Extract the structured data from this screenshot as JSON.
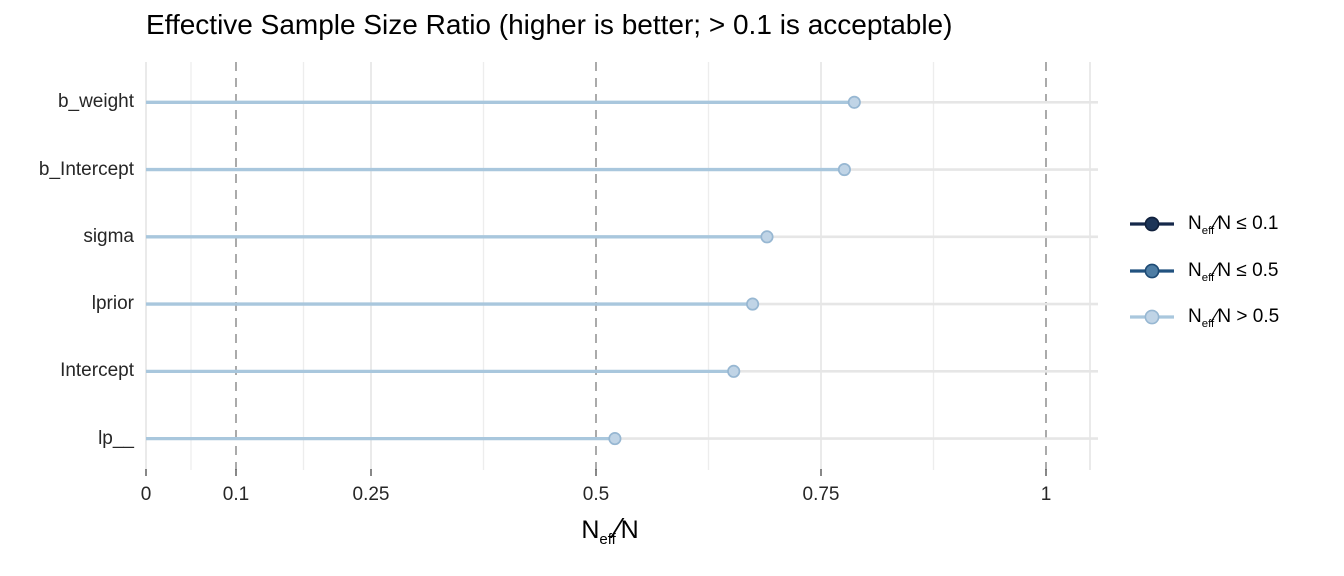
{
  "chart_data": {
    "type": "scatter",
    "subtype": "horizontal-lollipop",
    "title": "Effective Sample Size Ratio (higher is better; > 0.1 is acceptable)",
    "categories": [
      "b_weight",
      "b_Intercept",
      "sigma",
      "lprior",
      "Intercept",
      "lp__"
    ],
    "values": [
      0.787,
      0.776,
      0.69,
      0.674,
      0.653,
      0.521
    ],
    "xlabel": "N_eff/N",
    "xlabel_parts": {
      "pre": "N",
      "sub": "eff",
      "slash": "∕",
      "post": "N"
    },
    "xlim": [
      0,
      1.06
    ],
    "x_ticks": {
      "labels": [
        "0",
        "0.1",
        "0.25",
        "0.5",
        "0.75",
        "1"
      ],
      "values": [
        0,
        0.1,
        0.25,
        0.5,
        0.75,
        1
      ]
    },
    "reference_lines_dashed": [
      0.1,
      0.5,
      1
    ],
    "major_gridlines": [
      0,
      0.25,
      0.75
    ],
    "minor_gridlines": [
      0.05,
      0.175,
      0.375,
      0.625,
      0.875
    ],
    "grid": "on",
    "legend_position": "right",
    "legend": [
      {
        "pre": "N",
        "sub": "eff",
        "post": "∕N ≤ 0.1",
        "line_color": "#15284a",
        "dot_fill": "#1d3558",
        "dot_stroke": "#10203c"
      },
      {
        "pre": "N",
        "sub": "eff",
        "post": "∕N ≤ 0.5",
        "line_color": "#21527f",
        "dot_fill": "#4e7da4",
        "dot_stroke": "#1d4a74"
      },
      {
        "pre": "N",
        "sub": "eff",
        "post": "∕N > 0.5",
        "line_color": "#a9c7dd",
        "dot_fill": "#c0d4e6",
        "dot_stroke": "#97b7d2"
      }
    ],
    "category_thresholds": [
      0.1,
      0.5
    ]
  },
  "colors": {
    "segment": "#a9c7dd",
    "dot_fill": "#c0d4e6",
    "dot_stroke": "#97b7d2",
    "gridline_major": "#e7e7e7",
    "gridline_minor": "#ededed",
    "row_line": "#e6e6e6",
    "panel_edge": "#e7e7e7",
    "reference_line": "#969696",
    "tick_mark": "#555555",
    "axis_text": "#262626",
    "title_text": "#000000",
    "background": "#ffffff"
  }
}
